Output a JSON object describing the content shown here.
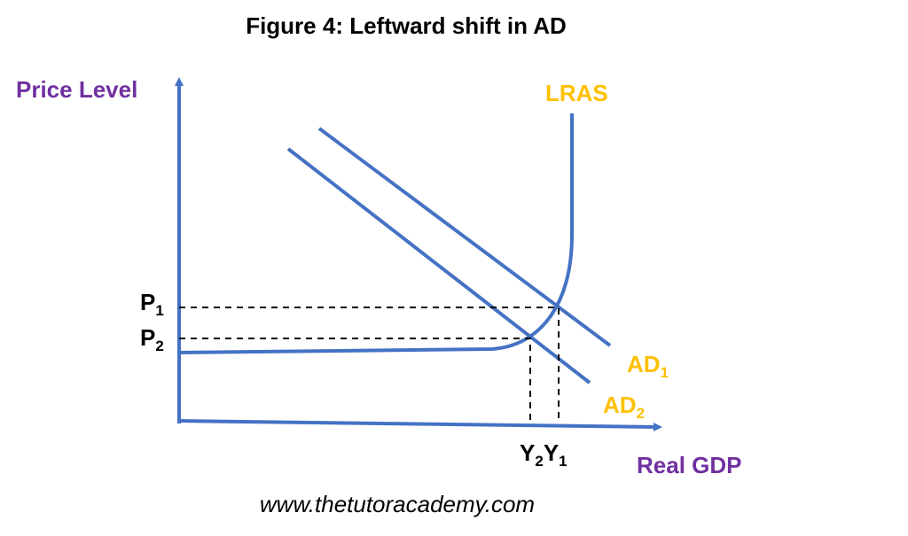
{
  "title": "Figure 4: Leftward shift in AD",
  "axes": {
    "y_label": "Price Level",
    "x_label": "Real GDP"
  },
  "curves": {
    "lras": "LRAS",
    "ad1": {
      "main": "AD",
      "sub": "1"
    },
    "ad2": {
      "main": "AD",
      "sub": "2"
    }
  },
  "price_levels": [
    {
      "main": "P",
      "sub": "1"
    },
    {
      "main": "P",
      "sub": "2"
    }
  ],
  "outputs": [
    {
      "main": "Y",
      "sub": "2"
    },
    {
      "main": "Y",
      "sub": "1"
    }
  ],
  "footer": "www.thetutoracademy.com"
}
